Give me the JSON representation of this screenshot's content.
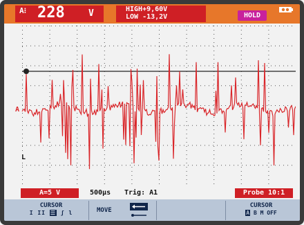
{
  "reading": {
    "symbol": "A⁝",
    "value": "228",
    "unit": "V"
  },
  "hilo": {
    "high": "HIGH+9,60V",
    "low": "LOW -13,2V"
  },
  "hold_label": "HOLD",
  "channel_marker": "A",
  "trigger_marker": "L",
  "status": {
    "range": "A=5 V",
    "timebase": "500µs",
    "trigger": "Trig: A1",
    "probe": "Probe 10:1"
  },
  "softkeys": {
    "cursor_left": {
      "label": "CURSOR",
      "modes": [
        "I",
        "II",
        "☰",
        "ʃ",
        "l"
      ]
    },
    "move": {
      "label": "MOVE"
    },
    "cursor_right": {
      "label": "CURSOR",
      "modes": [
        "A",
        "B",
        "M",
        "OFF"
      ]
    }
  },
  "colors": {
    "top_bar": "#e7772a",
    "reading_bg": "#cf1f25",
    "trace": "#d9262a",
    "hold": "#c8219c",
    "softkey_bg": "#b9c6d7"
  }
}
